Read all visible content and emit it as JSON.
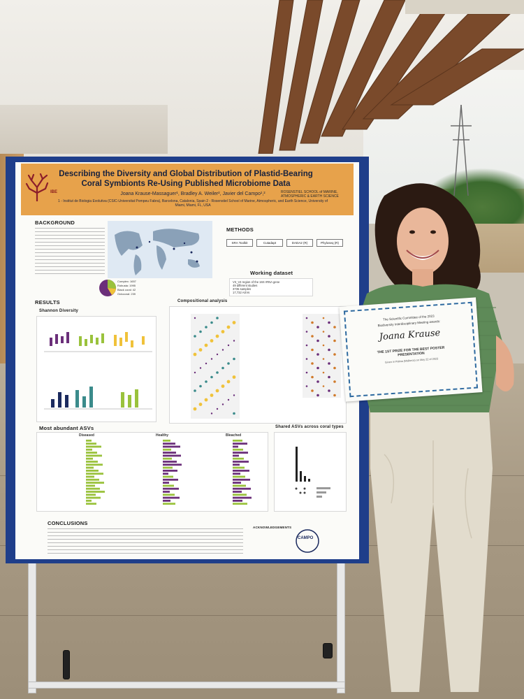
{
  "poster": {
    "title": "Describing the Diversity and Global Distribution of Plastid-Bearing Coral Symbionts Re-Using Published Microbiome Data",
    "authors": "Joana Krause-Massaguer¹, Bradley A. Weiler², Javier del Campo¹,²",
    "affiliations": "1 - Institut de Biologia Evolutiva (CSIC-Universitat Pompeu Fabra), Barcelona, Catalonia, Spain  2 - Rosenstiel School of Marine, Atmospheric, and Earth Science, University of Miami, Miami, FL, USA",
    "logo_left": "IBE",
    "logo_right": "ROSENSTIEL SCHOOL of MARINE, ATMOSPHERIC & EARTH SCIENCE",
    "sections": {
      "background": "BACKGROUND",
      "methods": "METHODS",
      "working_dataset": "Working dataset",
      "results": "RESULTS",
      "shannon": "Shannon Diversity",
      "compositional": "Compositional analysis",
      "most_abundant": "Most abundant ASVs",
      "shared": "Shared ASVs across coral types",
      "conclusions": "CONCLUSIONS",
      "acknowledgements": "ACKNOWLEDGEMENTS"
    },
    "methods_steps": [
      "SRA Toolkit",
      "Cutadapt",
      "DADA2 (R)",
      "Phyloseq (R)"
    ],
    "dataset_lines": [
      "V3_V4 region of the 16S rRNA gene",
      "49 different studies",
      "3735 samples",
      "17,732 ASVs"
    ],
    "legend": [
      "Complex: 1657",
      "Robusta: 1995",
      "Black coral: 42",
      "Octocoral: 239"
    ],
    "abundant_groups": [
      "Diseased",
      "Healthy",
      "Bleached"
    ],
    "logo_campo": "CAMPO"
  },
  "certificate": {
    "line1": "The Scientific Committee of the 2023",
    "line2": "Biodiversity Interdisciplinary Meeting awards:",
    "name": "Joana Krause",
    "prize": "THE 1ST PRIZE FOR THE BEST POSTER PRESENTATION",
    "date": "Given in Palma (Mallorca) on May 22 of 2023"
  },
  "colors": {
    "poster_frame": "#1f3e8a",
    "poster_header": "#e7a24b",
    "shirt": "#5e8a58",
    "pants": "#e2dccd"
  }
}
